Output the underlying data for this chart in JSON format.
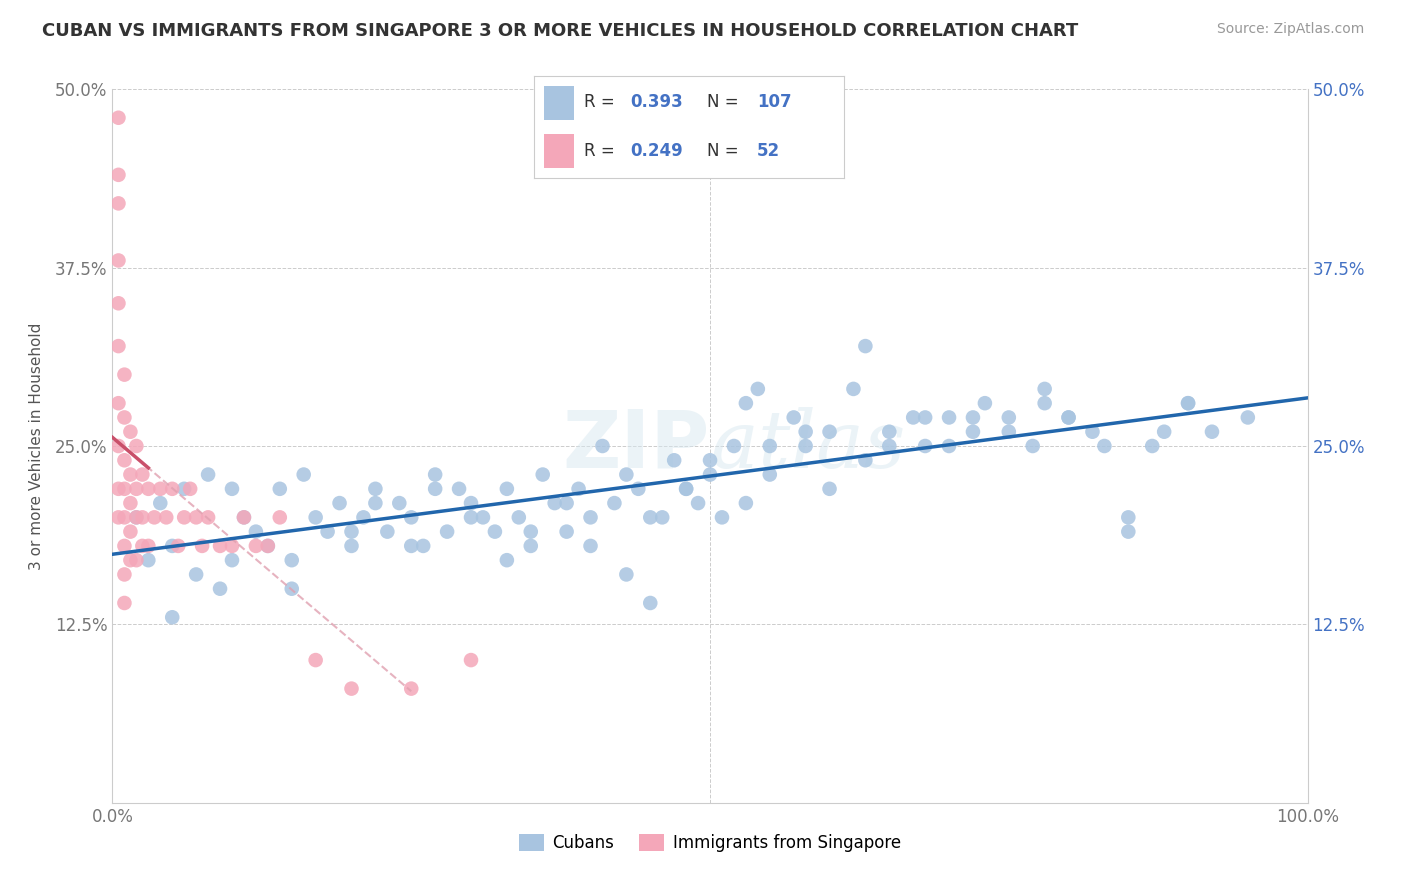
{
  "title": "CUBAN VS IMMIGRANTS FROM SINGAPORE 3 OR MORE VEHICLES IN HOUSEHOLD CORRELATION CHART",
  "source": "Source: ZipAtlas.com",
  "ylabel": "3 or more Vehicles in Household",
  "xlim": [
    0,
    1.0
  ],
  "ylim": [
    0,
    0.5
  ],
  "yticks": [
    0.0,
    0.125,
    0.25,
    0.375,
    0.5
  ],
  "yticklabels": [
    "",
    "12.5%",
    "25.0%",
    "37.5%",
    "50.0%"
  ],
  "blue_R": 0.393,
  "blue_N": 107,
  "pink_R": 0.249,
  "pink_N": 52,
  "blue_color": "#a8c4e0",
  "pink_color": "#f4a7b9",
  "blue_line_color": "#2166ac",
  "pink_line_color": "#c9506a",
  "pink_dash_color": "#e0a0b0",
  "grid_color": "#cccccc",
  "watermark": "ZIPatlas",
  "blue_scatter_x": [
    0.02,
    0.03,
    0.04,
    0.05,
    0.06,
    0.07,
    0.08,
    0.09,
    0.1,
    0.11,
    0.12,
    0.13,
    0.14,
    0.15,
    0.16,
    0.17,
    0.18,
    0.19,
    0.2,
    0.21,
    0.22,
    0.23,
    0.24,
    0.25,
    0.26,
    0.27,
    0.28,
    0.29,
    0.3,
    0.31,
    0.32,
    0.33,
    0.34,
    0.35,
    0.36,
    0.37,
    0.38,
    0.39,
    0.4,
    0.41,
    0.42,
    0.43,
    0.44,
    0.45,
    0.46,
    0.47,
    0.48,
    0.49,
    0.5,
    0.51,
    0.52,
    0.53,
    0.54,
    0.55,
    0.57,
    0.58,
    0.6,
    0.62,
    0.63,
    0.65,
    0.67,
    0.68,
    0.7,
    0.72,
    0.73,
    0.75,
    0.77,
    0.78,
    0.8,
    0.82,
    0.85,
    0.87,
    0.9,
    0.92,
    0.95,
    0.05,
    0.1,
    0.15,
    0.2,
    0.22,
    0.25,
    0.27,
    0.3,
    0.33,
    0.35,
    0.38,
    0.4,
    0.43,
    0.45,
    0.48,
    0.5,
    0.53,
    0.55,
    0.58,
    0.6,
    0.63,
    0.65,
    0.68,
    0.7,
    0.72,
    0.75,
    0.78,
    0.8,
    0.83,
    0.85,
    0.88,
    0.9
  ],
  "blue_scatter_y": [
    0.2,
    0.17,
    0.21,
    0.18,
    0.22,
    0.16,
    0.23,
    0.15,
    0.22,
    0.2,
    0.19,
    0.18,
    0.22,
    0.17,
    0.23,
    0.2,
    0.19,
    0.21,
    0.18,
    0.2,
    0.22,
    0.19,
    0.21,
    0.2,
    0.18,
    0.23,
    0.19,
    0.22,
    0.21,
    0.2,
    0.19,
    0.22,
    0.2,
    0.18,
    0.23,
    0.21,
    0.19,
    0.22,
    0.2,
    0.25,
    0.21,
    0.23,
    0.22,
    0.14,
    0.2,
    0.24,
    0.22,
    0.21,
    0.23,
    0.2,
    0.25,
    0.28,
    0.29,
    0.25,
    0.27,
    0.26,
    0.22,
    0.29,
    0.32,
    0.25,
    0.27,
    0.25,
    0.27,
    0.26,
    0.28,
    0.27,
    0.25,
    0.28,
    0.27,
    0.26,
    0.19,
    0.25,
    0.28,
    0.26,
    0.27,
    0.13,
    0.17,
    0.15,
    0.19,
    0.21,
    0.18,
    0.22,
    0.2,
    0.17,
    0.19,
    0.21,
    0.18,
    0.16,
    0.2,
    0.22,
    0.24,
    0.21,
    0.23,
    0.25,
    0.26,
    0.24,
    0.26,
    0.27,
    0.25,
    0.27,
    0.26,
    0.29,
    0.27,
    0.25,
    0.2,
    0.26,
    0.28
  ],
  "pink_scatter_x": [
    0.005,
    0.005,
    0.005,
    0.005,
    0.005,
    0.005,
    0.005,
    0.005,
    0.005,
    0.005,
    0.01,
    0.01,
    0.01,
    0.01,
    0.01,
    0.01,
    0.01,
    0.01,
    0.015,
    0.015,
    0.015,
    0.015,
    0.015,
    0.02,
    0.02,
    0.02,
    0.02,
    0.025,
    0.025,
    0.025,
    0.03,
    0.03,
    0.035,
    0.04,
    0.045,
    0.05,
    0.055,
    0.06,
    0.065,
    0.07,
    0.075,
    0.08,
    0.09,
    0.1,
    0.11,
    0.12,
    0.13,
    0.14,
    0.17,
    0.2,
    0.25,
    0.3
  ],
  "pink_scatter_y": [
    0.48,
    0.44,
    0.42,
    0.38,
    0.35,
    0.32,
    0.28,
    0.25,
    0.22,
    0.2,
    0.3,
    0.27,
    0.24,
    0.22,
    0.2,
    0.18,
    0.16,
    0.14,
    0.26,
    0.23,
    0.21,
    0.19,
    0.17,
    0.25,
    0.22,
    0.2,
    0.17,
    0.23,
    0.2,
    0.18,
    0.22,
    0.18,
    0.2,
    0.22,
    0.2,
    0.22,
    0.18,
    0.2,
    0.22,
    0.2,
    0.18,
    0.2,
    0.18,
    0.18,
    0.2,
    0.18,
    0.18,
    0.2,
    0.1,
    0.08,
    0.08,
    0.1
  ]
}
